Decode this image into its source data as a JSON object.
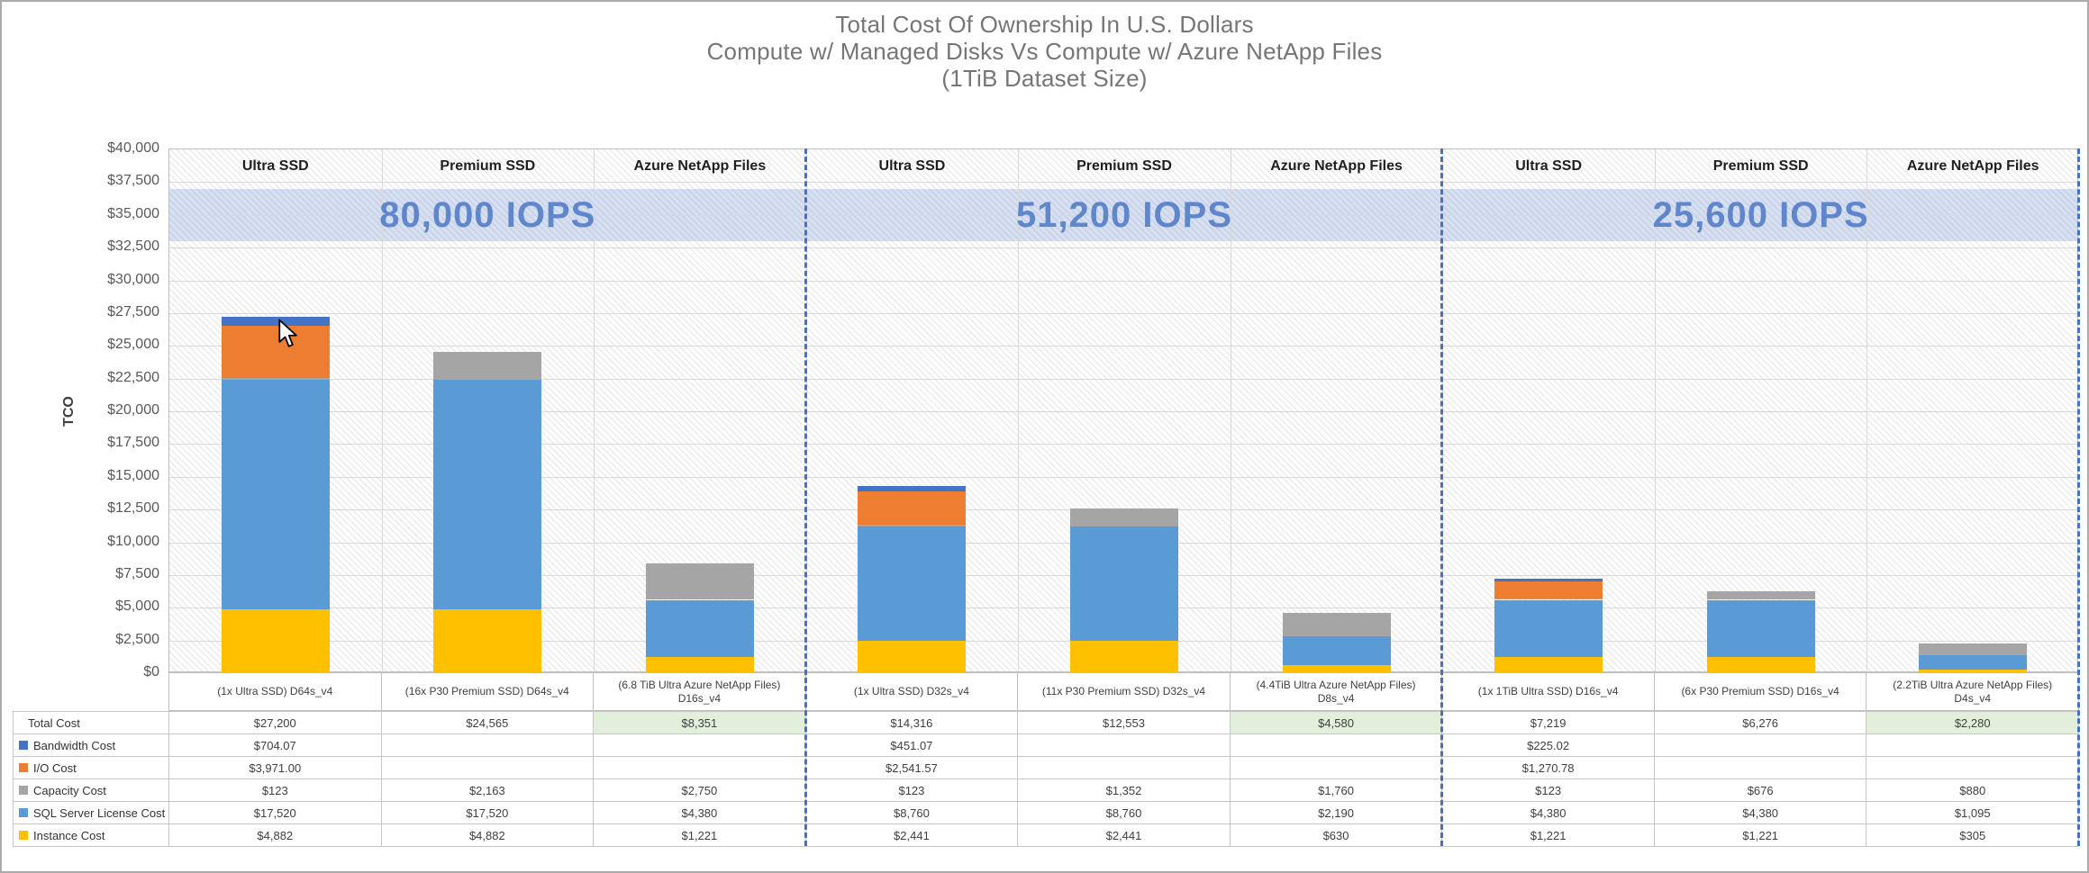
{
  "title": {
    "line1": "Total Cost Of Ownership In U.S. Dollars",
    "line2": "Compute w/ Managed Disks Vs Compute w/ Azure NetApp Files",
    "line3": "(1TiB Dataset Size)"
  },
  "chart_data": {
    "type": "bar",
    "subtype": "stacked-grouped",
    "title": "Total Cost Of Ownership In U.S. Dollars",
    "xlabel": "",
    "ylabel": "TCO",
    "ylim": [
      0,
      40000
    ],
    "ytick_step": 2500,
    "yticks": [
      "$40,000",
      "$37,500",
      "$35,000",
      "$32,500",
      "$30,000",
      "$27,500",
      "$25,000",
      "$22,500",
      "$20,000",
      "$17,500",
      "$15,000",
      "$12,500",
      "$10,000",
      "$7,500",
      "$5,000",
      "$2,500",
      "$0"
    ],
    "grid": true,
    "legend_position": "table-left",
    "accent_color": "#4472C4",
    "iops_band": {
      "top_value": 37000,
      "bottom_value": 33000,
      "fill": "#4472C4",
      "fill_opacity": 0.22,
      "text_color": "#4472C4",
      "text_opacity": 0.8
    },
    "stack_order": [
      "instance",
      "sql",
      "capacity",
      "io",
      "bandwidth"
    ],
    "series_colors": {
      "bandwidth": "#4472C4",
      "io": "#ED7D31",
      "capacity": "#A5A5A5",
      "sql": "#5B9BD5",
      "instance": "#FFC000"
    },
    "groups": [
      {
        "iops": "80,000 IOPS",
        "bars": [
          {
            "header": "Ultra SSD",
            "label": "(1x Ultra SSD) D64s_v4",
            "highlight": false,
            "values": {
              "instance": 4882,
              "sql": 17520,
              "capacity": 123,
              "io": 3971,
              "bandwidth": 704.07
            },
            "texts": {
              "total": "$27,200",
              "bandwidth": "$704.07",
              "io": "$3,971.00",
              "capacity": "$123",
              "sql": "$17,520",
              "instance": "$4,882"
            }
          },
          {
            "header": "Premium SSD",
            "label": "(16x P30 Premium SSD) D64s_v4",
            "highlight": false,
            "values": {
              "instance": 4882,
              "sql": 17520,
              "capacity": 2163
            },
            "texts": {
              "total": "$24,565",
              "bandwidth": "",
              "io": "",
              "capacity": "$2,163",
              "sql": "$17,520",
              "instance": "$4,882"
            }
          },
          {
            "header": "Azure NetApp Files",
            "label": "(6.8 TiB Ultra Azure NetApp Files) D16s_v4",
            "highlight": true,
            "values": {
              "instance": 1221,
              "sql": 4380,
              "capacity": 2750
            },
            "texts": {
              "total": "$8,351",
              "bandwidth": "",
              "io": "",
              "capacity": "$2,750",
              "sql": "$4,380",
              "instance": "$1,221"
            }
          }
        ]
      },
      {
        "iops": "51,200 IOPS",
        "bars": [
          {
            "header": "Ultra SSD",
            "label": "(1x Ultra SSD) D32s_v4",
            "highlight": false,
            "values": {
              "instance": 2441,
              "sql": 8760,
              "capacity": 123,
              "io": 2541.57,
              "bandwidth": 451.07
            },
            "texts": {
              "total": "$14,316",
              "bandwidth": "$451.07",
              "io": "$2,541.57",
              "capacity": "$123",
              "sql": "$8,760",
              "instance": "$2,441"
            }
          },
          {
            "header": "Premium SSD",
            "label": "(11x P30 Premium SSD) D32s_v4",
            "highlight": false,
            "values": {
              "instance": 2441,
              "sql": 8760,
              "capacity": 1352
            },
            "texts": {
              "total": "$12,553",
              "bandwidth": "",
              "io": "",
              "capacity": "$1,352",
              "sql": "$8,760",
              "instance": "$2,441"
            }
          },
          {
            "header": "Azure NetApp Files",
            "label": "(4.4TiB Ultra Azure NetApp Files) D8s_v4",
            "highlight": true,
            "values": {
              "instance": 630,
              "sql": 2190,
              "capacity": 1760
            },
            "texts": {
              "total": "$4,580",
              "bandwidth": "",
              "io": "",
              "capacity": "$1,760",
              "sql": "$2,190",
              "instance": "$630"
            }
          }
        ]
      },
      {
        "iops": "25,600 IOPS",
        "bars": [
          {
            "header": "Ultra SSD",
            "label": "(1x 1TiB Ultra SSD) D16s_v4",
            "highlight": false,
            "values": {
              "instance": 1221,
              "sql": 4380,
              "capacity": 123,
              "io": 1270.78,
              "bandwidth": 225.02
            },
            "texts": {
              "total": "$7,219",
              "bandwidth": "$225.02",
              "io": "$1,270.78",
              "capacity": "$123",
              "sql": "$4,380",
              "instance": "$1,221"
            }
          },
          {
            "header": "Premium SSD",
            "label": "(6x P30 Premium SSD) D16s_v4",
            "highlight": false,
            "values": {
              "instance": 1221,
              "sql": 4380,
              "capacity": 676
            },
            "texts": {
              "total": "$6,276",
              "bandwidth": "",
              "io": "",
              "capacity": "$676",
              "sql": "$4,380",
              "instance": "$1,221"
            }
          },
          {
            "header": "Azure NetApp Files",
            "label": "(2.2TiB Ultra Azure NetApp Files) D4s_v4",
            "highlight": true,
            "values": {
              "instance": 305,
              "sql": 1095,
              "capacity": 880
            },
            "texts": {
              "total": "$2,280",
              "bandwidth": "",
              "io": "",
              "capacity": "$880",
              "sql": "$1,095",
              "instance": "$305"
            }
          }
        ]
      }
    ]
  },
  "table": {
    "rows": [
      {
        "key": "total",
        "label": "Total Cost",
        "swatch": false
      },
      {
        "key": "bandwidth",
        "label": "Bandwidth Cost",
        "swatch": true
      },
      {
        "key": "io",
        "label": "I/O Cost",
        "swatch": true
      },
      {
        "key": "capacity",
        "label": "Capacity Cost",
        "swatch": true
      },
      {
        "key": "sql",
        "label": "SQL Server License Cost",
        "swatch": true
      },
      {
        "key": "instance",
        "label": "Instance Cost",
        "swatch": true
      }
    ],
    "highlight_color": "#E2EFDA"
  }
}
